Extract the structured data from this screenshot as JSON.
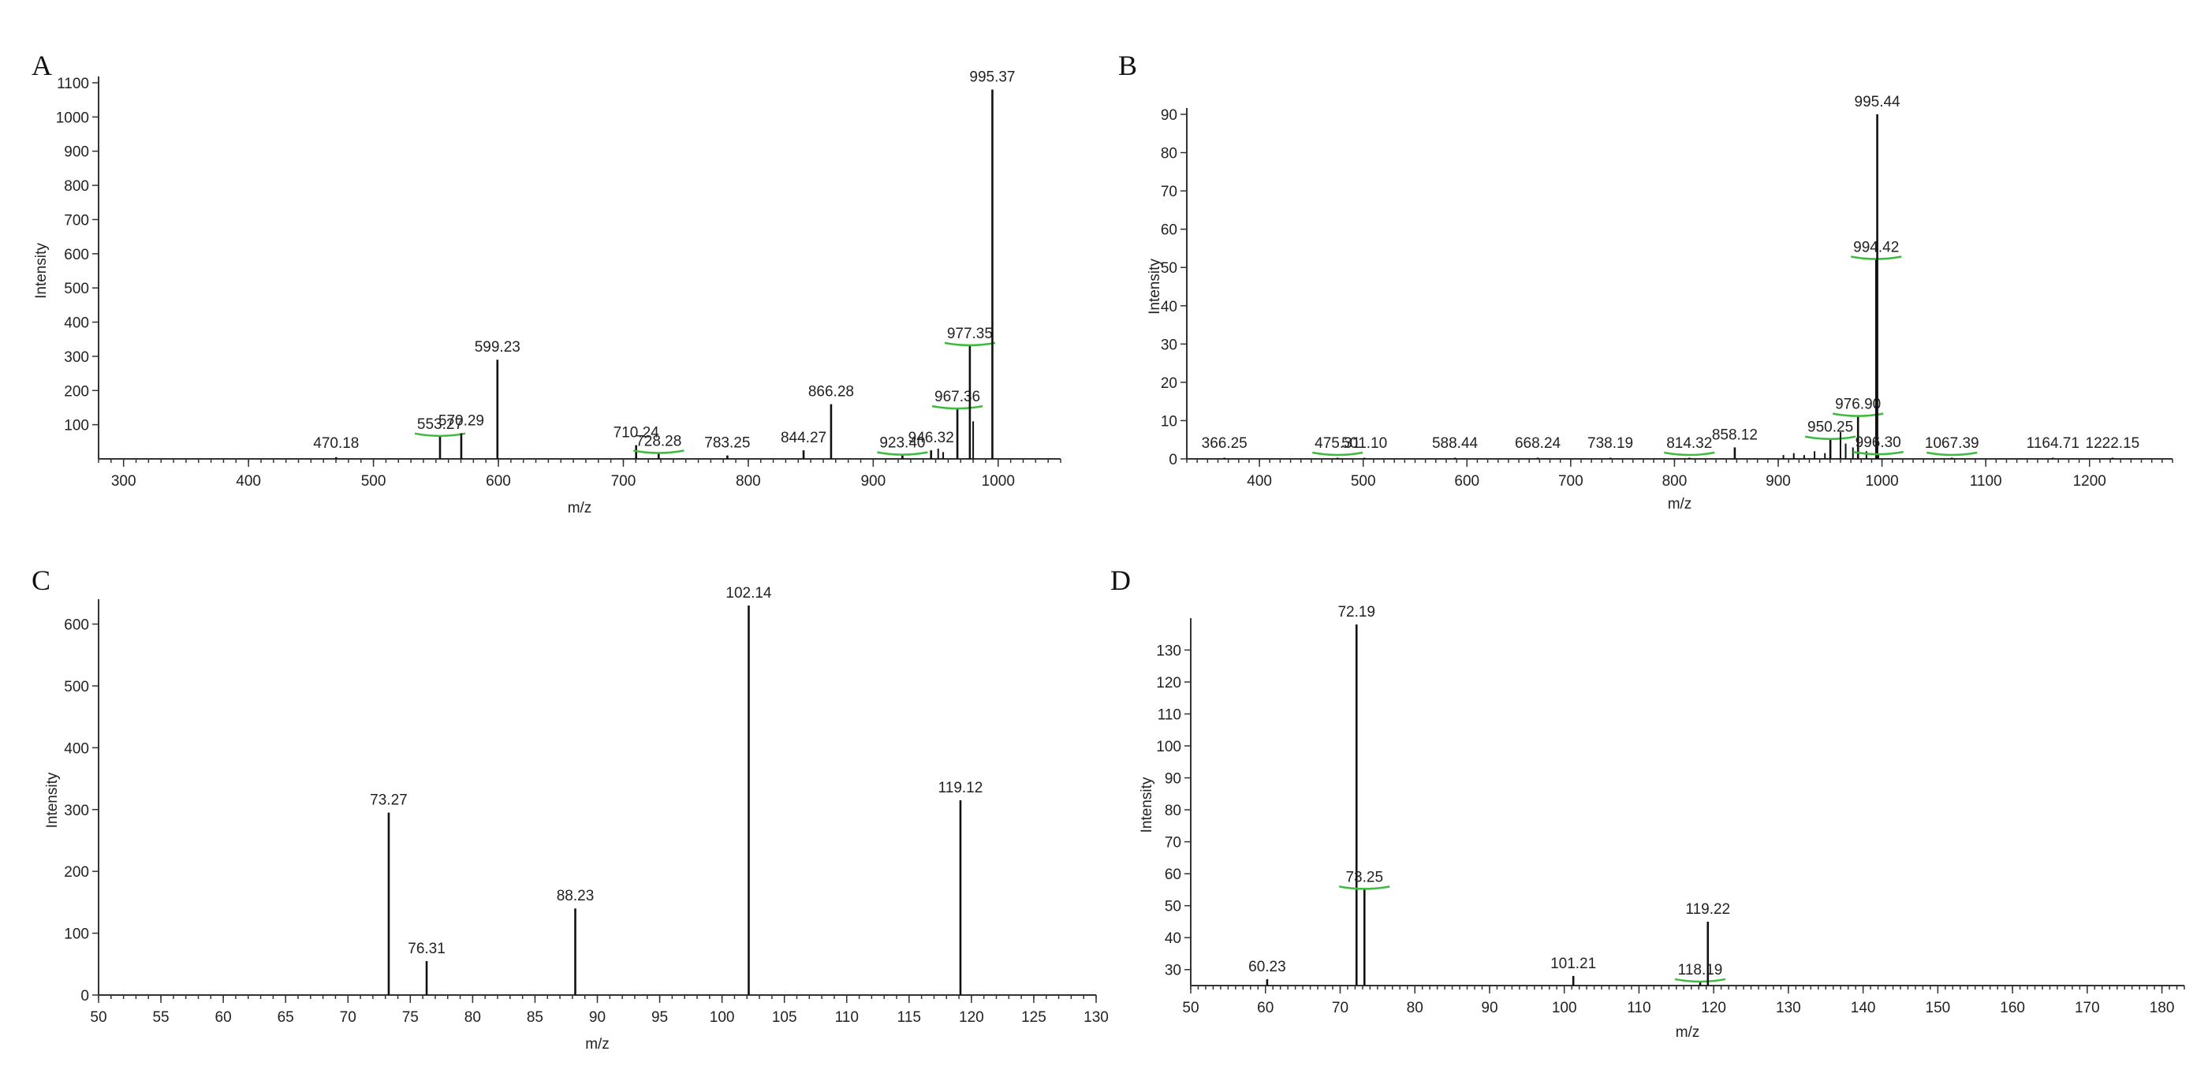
{
  "chart_data": [
    {
      "panel": "A",
      "type": "bar",
      "xlabel": "m/z",
      "ylabel": "Intensity",
      "xlim": [
        280,
        1050
      ],
      "ylim": [
        0,
        1100
      ],
      "xticks": [
        300,
        400,
        500,
        600,
        700,
        800,
        900,
        1000
      ],
      "yticks": [
        100,
        200,
        300,
        400,
        500,
        600,
        700,
        800,
        900,
        1000,
        1100
      ],
      "peaks": [
        {
          "x": 470.18,
          "y": 5,
          "label": "470.18"
        },
        {
          "x": 553.27,
          "y": 65,
          "label": "553.27",
          "marker": true
        },
        {
          "x": 570.29,
          "y": 75,
          "label": "570.29"
        },
        {
          "x": 599.23,
          "y": 290,
          "label": "599.23"
        },
        {
          "x": 710.24,
          "y": 40,
          "label": "710.24"
        },
        {
          "x": 728.28,
          "y": 15,
          "label": "728.28",
          "marker": true
        },
        {
          "x": 783.25,
          "y": 10,
          "label": "783.25"
        },
        {
          "x": 844.27,
          "y": 25,
          "label": "844.27"
        },
        {
          "x": 866.28,
          "y": 160,
          "label": "866.28"
        },
        {
          "x": 923.4,
          "y": 10,
          "label": "923.40",
          "marker": true
        },
        {
          "x": 946.32,
          "y": 25,
          "label": "946.32"
        },
        {
          "x": 952.0,
          "y": 30
        },
        {
          "x": 956.0,
          "y": 20
        },
        {
          "x": 967.36,
          "y": 145,
          "label": "967.36",
          "marker": true
        },
        {
          "x": 977.35,
          "y": 330,
          "label": "977.35",
          "marker": true
        },
        {
          "x": 980.0,
          "y": 110
        },
        {
          "x": 995.37,
          "y": 1080,
          "label": "995.37"
        }
      ]
    },
    {
      "panel": "B",
      "type": "bar",
      "xlabel": "m/z",
      "ylabel": "Intensity",
      "xlim": [
        330,
        1280
      ],
      "ylim": [
        0,
        90
      ],
      "xticks": [
        400,
        500,
        600,
        700,
        800,
        900,
        1000,
        1100,
        1200
      ],
      "yticks": [
        0,
        10,
        20,
        30,
        40,
        50,
        60,
        70,
        80,
        90
      ],
      "peaks": [
        {
          "x": 366.25,
          "y": 0.3,
          "label": "366.25"
        },
        {
          "x": 475.31,
          "y": 0.3,
          "label": "475.31",
          "marker": true
        },
        {
          "x": 501.1,
          "y": 0.3,
          "label": "501.10"
        },
        {
          "x": 588.44,
          "y": 0.3,
          "label": "588.44"
        },
        {
          "x": 668.24,
          "y": 0.3,
          "label": "668.24"
        },
        {
          "x": 738.19,
          "y": 0.3,
          "label": "738.19"
        },
        {
          "x": 814.32,
          "y": 0.3,
          "label": "814.32",
          "marker": true
        },
        {
          "x": 858.12,
          "y": 3,
          "label": "858.12"
        },
        {
          "x": 905.0,
          "y": 1
        },
        {
          "x": 915.0,
          "y": 1.5
        },
        {
          "x": 925.0,
          "y": 1
        },
        {
          "x": 935.0,
          "y": 2
        },
        {
          "x": 945.0,
          "y": 1.5
        },
        {
          "x": 950.25,
          "y": 5,
          "label": "950.25",
          "marker": true
        },
        {
          "x": 960.0,
          "y": 7
        },
        {
          "x": 965.0,
          "y": 4
        },
        {
          "x": 972.0,
          "y": 3
        },
        {
          "x": 976.9,
          "y": 11,
          "label": "976.90",
          "marker": true
        },
        {
          "x": 985.0,
          "y": 2
        },
        {
          "x": 994.42,
          "y": 52,
          "label": "994.42",
          "marker": true
        },
        {
          "x": 995.44,
          "y": 90,
          "label": "995.44"
        },
        {
          "x": 996.3,
          "y": 1,
          "label": "996.30",
          "marker": true
        },
        {
          "x": 1067.39,
          "y": 0.3,
          "label": "1067.39",
          "marker": true
        },
        {
          "x": 1164.71,
          "y": 0.3,
          "label": "1164.71"
        },
        {
          "x": 1222.15,
          "y": 0.3,
          "label": "1222.15"
        }
      ]
    },
    {
      "panel": "C",
      "type": "bar",
      "xlabel": "m/z",
      "ylabel": "Intensity",
      "xlim": [
        50,
        130
      ],
      "ylim": [
        0,
        630
      ],
      "xticks": [
        50,
        55,
        60,
        65,
        70,
        75,
        80,
        85,
        90,
        95,
        100,
        105,
        110,
        115,
        120,
        125,
        130
      ],
      "yticks": [
        0,
        100,
        200,
        300,
        400,
        500,
        600
      ],
      "peaks": [
        {
          "x": 73.27,
          "y": 295,
          "label": "73.27"
        },
        {
          "x": 76.31,
          "y": 55,
          "label": "76.31"
        },
        {
          "x": 88.23,
          "y": 140,
          "label": "88.23"
        },
        {
          "x": 102.14,
          "y": 630,
          "label": "102.14"
        },
        {
          "x": 119.12,
          "y": 315,
          "label": "119.12"
        }
      ]
    },
    {
      "panel": "D",
      "type": "bar",
      "xlabel": "m/z",
      "ylabel": "Intensity",
      "xlim": [
        50,
        183
      ],
      "ylim": [
        25,
        138
      ],
      "xticks": [
        50,
        60,
        70,
        80,
        90,
        100,
        110,
        120,
        130,
        140,
        150,
        160,
        170,
        180
      ],
      "yticks": [
        30,
        40,
        50,
        60,
        70,
        80,
        90,
        100,
        110,
        120,
        130
      ],
      "peaks": [
        {
          "x": 60.23,
          "y": 27,
          "label": "60.23"
        },
        {
          "x": 72.19,
          "y": 138,
          "label": "72.19"
        },
        {
          "x": 73.25,
          "y": 55,
          "label": "73.25",
          "marker": true
        },
        {
          "x": 101.21,
          "y": 28,
          "label": "101.21"
        },
        {
          "x": 118.19,
          "y": 26,
          "label": "118.19",
          "marker": true
        },
        {
          "x": 119.22,
          "y": 45,
          "label": "119.22"
        }
      ]
    }
  ]
}
